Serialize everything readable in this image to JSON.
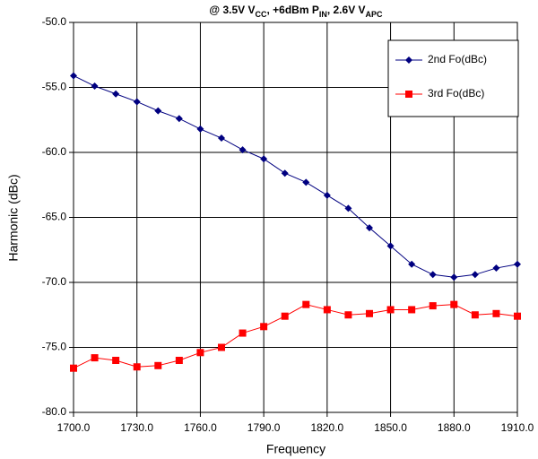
{
  "chart_data": {
    "type": "line",
    "title_parts": [
      "@ 3.5V V",
      "CC",
      ", +6dBm P",
      "IN",
      ", 2.6V V",
      "APC"
    ],
    "xlabel": "Frequency",
    "ylabel": "Harmonic (dBc)",
    "x": [
      1700,
      1710,
      1720,
      1730,
      1740,
      1750,
      1760,
      1770,
      1780,
      1790,
      1800,
      1810,
      1820,
      1830,
      1840,
      1850,
      1860,
      1870,
      1880,
      1890,
      1900,
      1910
    ],
    "series": [
      {
        "name": "2nd Fo(dBc)",
        "color": "#000080",
        "marker": "diamond",
        "values": [
          -54.1,
          -54.9,
          -55.5,
          -56.1,
          -56.8,
          -57.4,
          -58.2,
          -58.9,
          -59.8,
          -60.5,
          -61.6,
          -62.3,
          -63.3,
          -64.3,
          -65.8,
          -67.2,
          -68.6,
          -69.4,
          -69.6,
          -69.4,
          -68.9,
          -68.6
        ]
      },
      {
        "name": "3rd Fo(dBc)",
        "color": "#ff0000",
        "marker": "square",
        "values": [
          -76.6,
          -75.8,
          -76.0,
          -76.5,
          -76.4,
          -76.0,
          -75.4,
          -75.0,
          -73.9,
          -73.4,
          -72.6,
          -71.7,
          -72.1,
          -72.5,
          -72.4,
          -72.1,
          -72.1,
          -71.8,
          -71.7,
          -72.5,
          -72.4,
          -72.6
        ]
      }
    ],
    "xlim": [
      1700,
      1910
    ],
    "xticks": [
      {
        "value": 1700,
        "label": "1700.0"
      },
      {
        "value": 1730,
        "label": "1730.0"
      },
      {
        "value": 1760,
        "label": "1760.0"
      },
      {
        "value": 1790,
        "label": "1790.0"
      },
      {
        "value": 1820,
        "label": "1820.0"
      },
      {
        "value": 1850,
        "label": "1850.0"
      },
      {
        "value": 1880,
        "label": "1880.0"
      },
      {
        "value": 1910,
        "label": "1910.0"
      }
    ],
    "ylim": [
      -80,
      -50
    ],
    "yticks": [
      {
        "value": -80,
        "label": "-80.0"
      },
      {
        "value": -75,
        "label": "-75.0"
      },
      {
        "value": -70,
        "label": "-70.0"
      },
      {
        "value": -65,
        "label": "-65.0"
      },
      {
        "value": -60,
        "label": "-60.0"
      },
      {
        "value": -55,
        "label": "-55.0"
      },
      {
        "value": -50,
        "label": "-50.0"
      }
    ],
    "grid": true,
    "legend": "upper right"
  }
}
